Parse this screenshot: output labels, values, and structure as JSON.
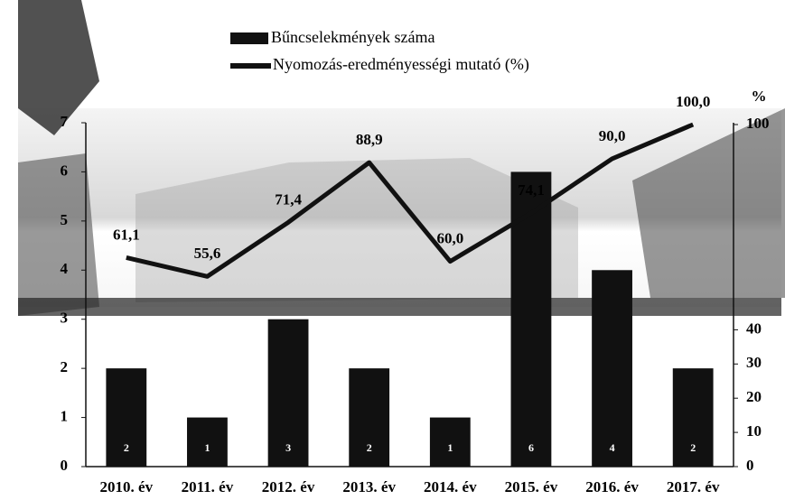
{
  "chart_data": {
    "type": "bar_line",
    "categories": [
      "2010. év",
      "2011. év",
      "2012. év",
      "2013. év",
      "2014. év",
      "2015. év",
      "2016. év",
      "2017. év"
    ],
    "series": [
      {
        "name": "Bűncselekmények száma",
        "type": "bar",
        "color": "#111111",
        "values": [
          2,
          1,
          3,
          2,
          1,
          6,
          4,
          2
        ]
      },
      {
        "name": "Nyomozás-eredményességi mutató (%)",
        "type": "line",
        "axis": "y2",
        "color": "#111111",
        "values": [
          61.1,
          55.6,
          71.4,
          88.9,
          60.0,
          74.1,
          90.0,
          100.0
        ],
        "value_labels": [
          "61,1",
          "55,6",
          "71,4",
          "88,9",
          "60,0",
          "74,1",
          "90,0",
          "100,0"
        ]
      }
    ],
    "ylim": [
      0,
      7
    ],
    "yticks": [
      0,
      1,
      2,
      3,
      4,
      5,
      6,
      7
    ],
    "y2lim": [
      0,
      100
    ],
    "y2ticks": [
      0,
      10,
      20,
      30,
      40,
      100
    ],
    "y2_label": "%"
  }
}
